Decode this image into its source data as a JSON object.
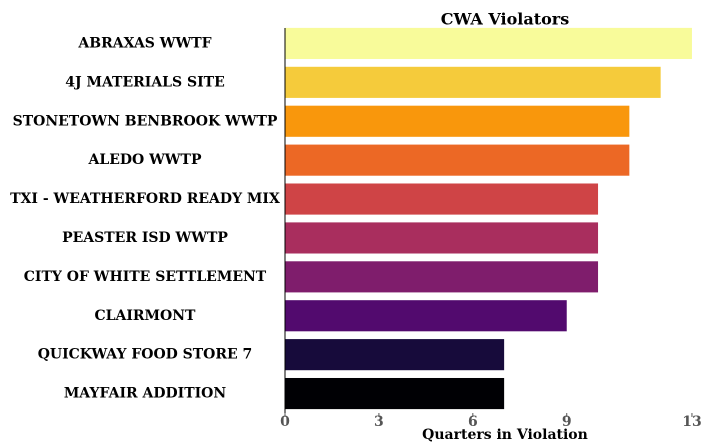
{
  "chart_data": {
    "type": "barh",
    "title": "CWA Violators",
    "x_label": "Quarters in Violation",
    "categories": [
      "ABRAXAS WWTF",
      "4J MATERIALS SITE",
      "STONETOWN BENBROOK WWTP",
      "ALEDO WWTP",
      "TXI - WEATHERFORD READY MIX",
      "PEASTER ISD WWTP",
      "CITY OF WHITE SETTLEMENT",
      "CLAIRMONT",
      "QUICKWAY FOOD STORE 7",
      "MAYFAIR ADDITION"
    ],
    "values": [
      13,
      12,
      11,
      11,
      10,
      10,
      10,
      9,
      7,
      7
    ],
    "colors": [
      "#f8fb9a",
      "#f5cb3b",
      "#f9970c",
      "#ec6825",
      "#cf4446",
      "#a92e5e",
      "#7f1d6c",
      "#520a6e",
      "#170b3b",
      "#000004"
    ],
    "xlim": [
      0,
      13.8
    ],
    "xticks": [
      0,
      3,
      6,
      9,
      13
    ]
  }
}
